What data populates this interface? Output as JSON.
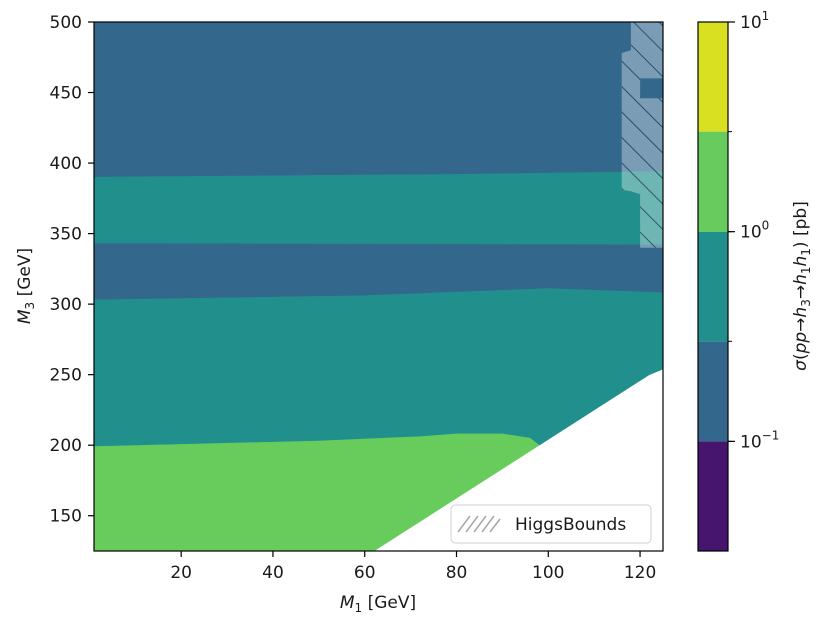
{
  "chart_data": {
    "type": "heatmap",
    "xlabel": "M_1 [GeV]",
    "ylabel": "M_3 [GeV]",
    "xlim": [
      1,
      125
    ],
    "ylim": [
      125,
      500
    ],
    "x_ticks": [
      "20",
      "40",
      "60",
      "80",
      "100",
      "120"
    ],
    "y_ticks": [
      "150",
      "200",
      "250",
      "300",
      "350",
      "400",
      "450",
      "500"
    ],
    "colorbar": {
      "label": "σ(pp→h3→h1h1) [pb]",
      "scale": "log",
      "range": [
        0.03,
        10
      ],
      "tick_labels": [
        {
          "value": 0.1,
          "base": "10",
          "exp": "−1"
        },
        {
          "value": 1,
          "base": "10",
          "exp": "0"
        },
        {
          "value": 10,
          "base": "10",
          "exp": "1"
        }
      ],
      "levels": [
        0.03,
        0.1,
        0.3,
        1,
        3,
        10
      ],
      "colors": [
        "#46166e",
        "#33688c",
        "#21908d",
        "#67cc5c",
        "#d9e021"
      ]
    },
    "regions": [
      {
        "level_index": 1,
        "description_range_pb": [
          0.1,
          0.3
        ],
        "polygon": [
          [
            1,
            500
          ],
          [
            125,
            500
          ],
          [
            125,
            390
          ],
          [
            1,
            390
          ]
        ]
      },
      {
        "level_index": 2,
        "description_range_pb": [
          0.3,
          1
        ],
        "polygon": [
          [
            1,
            390
          ],
          [
            80,
            392
          ],
          [
            125,
            394
          ],
          [
            125,
            342
          ],
          [
            1,
            343
          ]
        ]
      },
      {
        "level_index": 1,
        "description_range_pb": [
          0.1,
          0.3
        ],
        "polygon": [
          [
            1,
            343
          ],
          [
            125,
            342
          ],
          [
            125,
            308
          ],
          [
            100,
            311
          ],
          [
            60,
            306
          ],
          [
            1,
            303
          ]
        ]
      },
      {
        "level_index": 2,
        "description_range_pb": [
          0.3,
          1
        ],
        "polygon": [
          [
            1,
            303
          ],
          [
            60,
            306
          ],
          [
            100,
            311
          ],
          [
            125,
            308
          ],
          [
            125,
            254
          ],
          [
            122,
            250
          ],
          [
            98,
            200
          ],
          [
            96,
            205
          ],
          [
            90,
            208
          ],
          [
            80,
            208
          ],
          [
            72,
            206
          ],
          [
            50,
            203
          ],
          [
            1,
            199
          ]
        ]
      },
      {
        "level_index": 3,
        "description_range_pb": [
          1,
          3
        ],
        "polygon": [
          [
            1,
            199
          ],
          [
            50,
            203
          ],
          [
            72,
            206
          ],
          [
            80,
            208
          ],
          [
            90,
            208
          ],
          [
            96,
            205
          ],
          [
            98,
            200
          ],
          [
            62,
            125
          ],
          [
            1,
            125
          ]
        ]
      }
    ],
    "excluded_region": {
      "name": "HiggsBounds",
      "polygon": [
        [
          118,
          500
        ],
        [
          125,
          500
        ],
        [
          125,
          340
        ],
        [
          120,
          340
        ],
        [
          120,
          378
        ],
        [
          118,
          380
        ],
        [
          116,
          381
        ],
        [
          116,
          478
        ],
        [
          118,
          480
        ]
      ],
      "notch": [
        [
          120,
          460
        ],
        [
          125,
          460
        ],
        [
          125,
          446
        ],
        [
          120,
          446
        ]
      ]
    },
    "legend": {
      "entries": [
        "HiggsBounds"
      ],
      "placement": "lower-right"
    },
    "grid": false
  }
}
